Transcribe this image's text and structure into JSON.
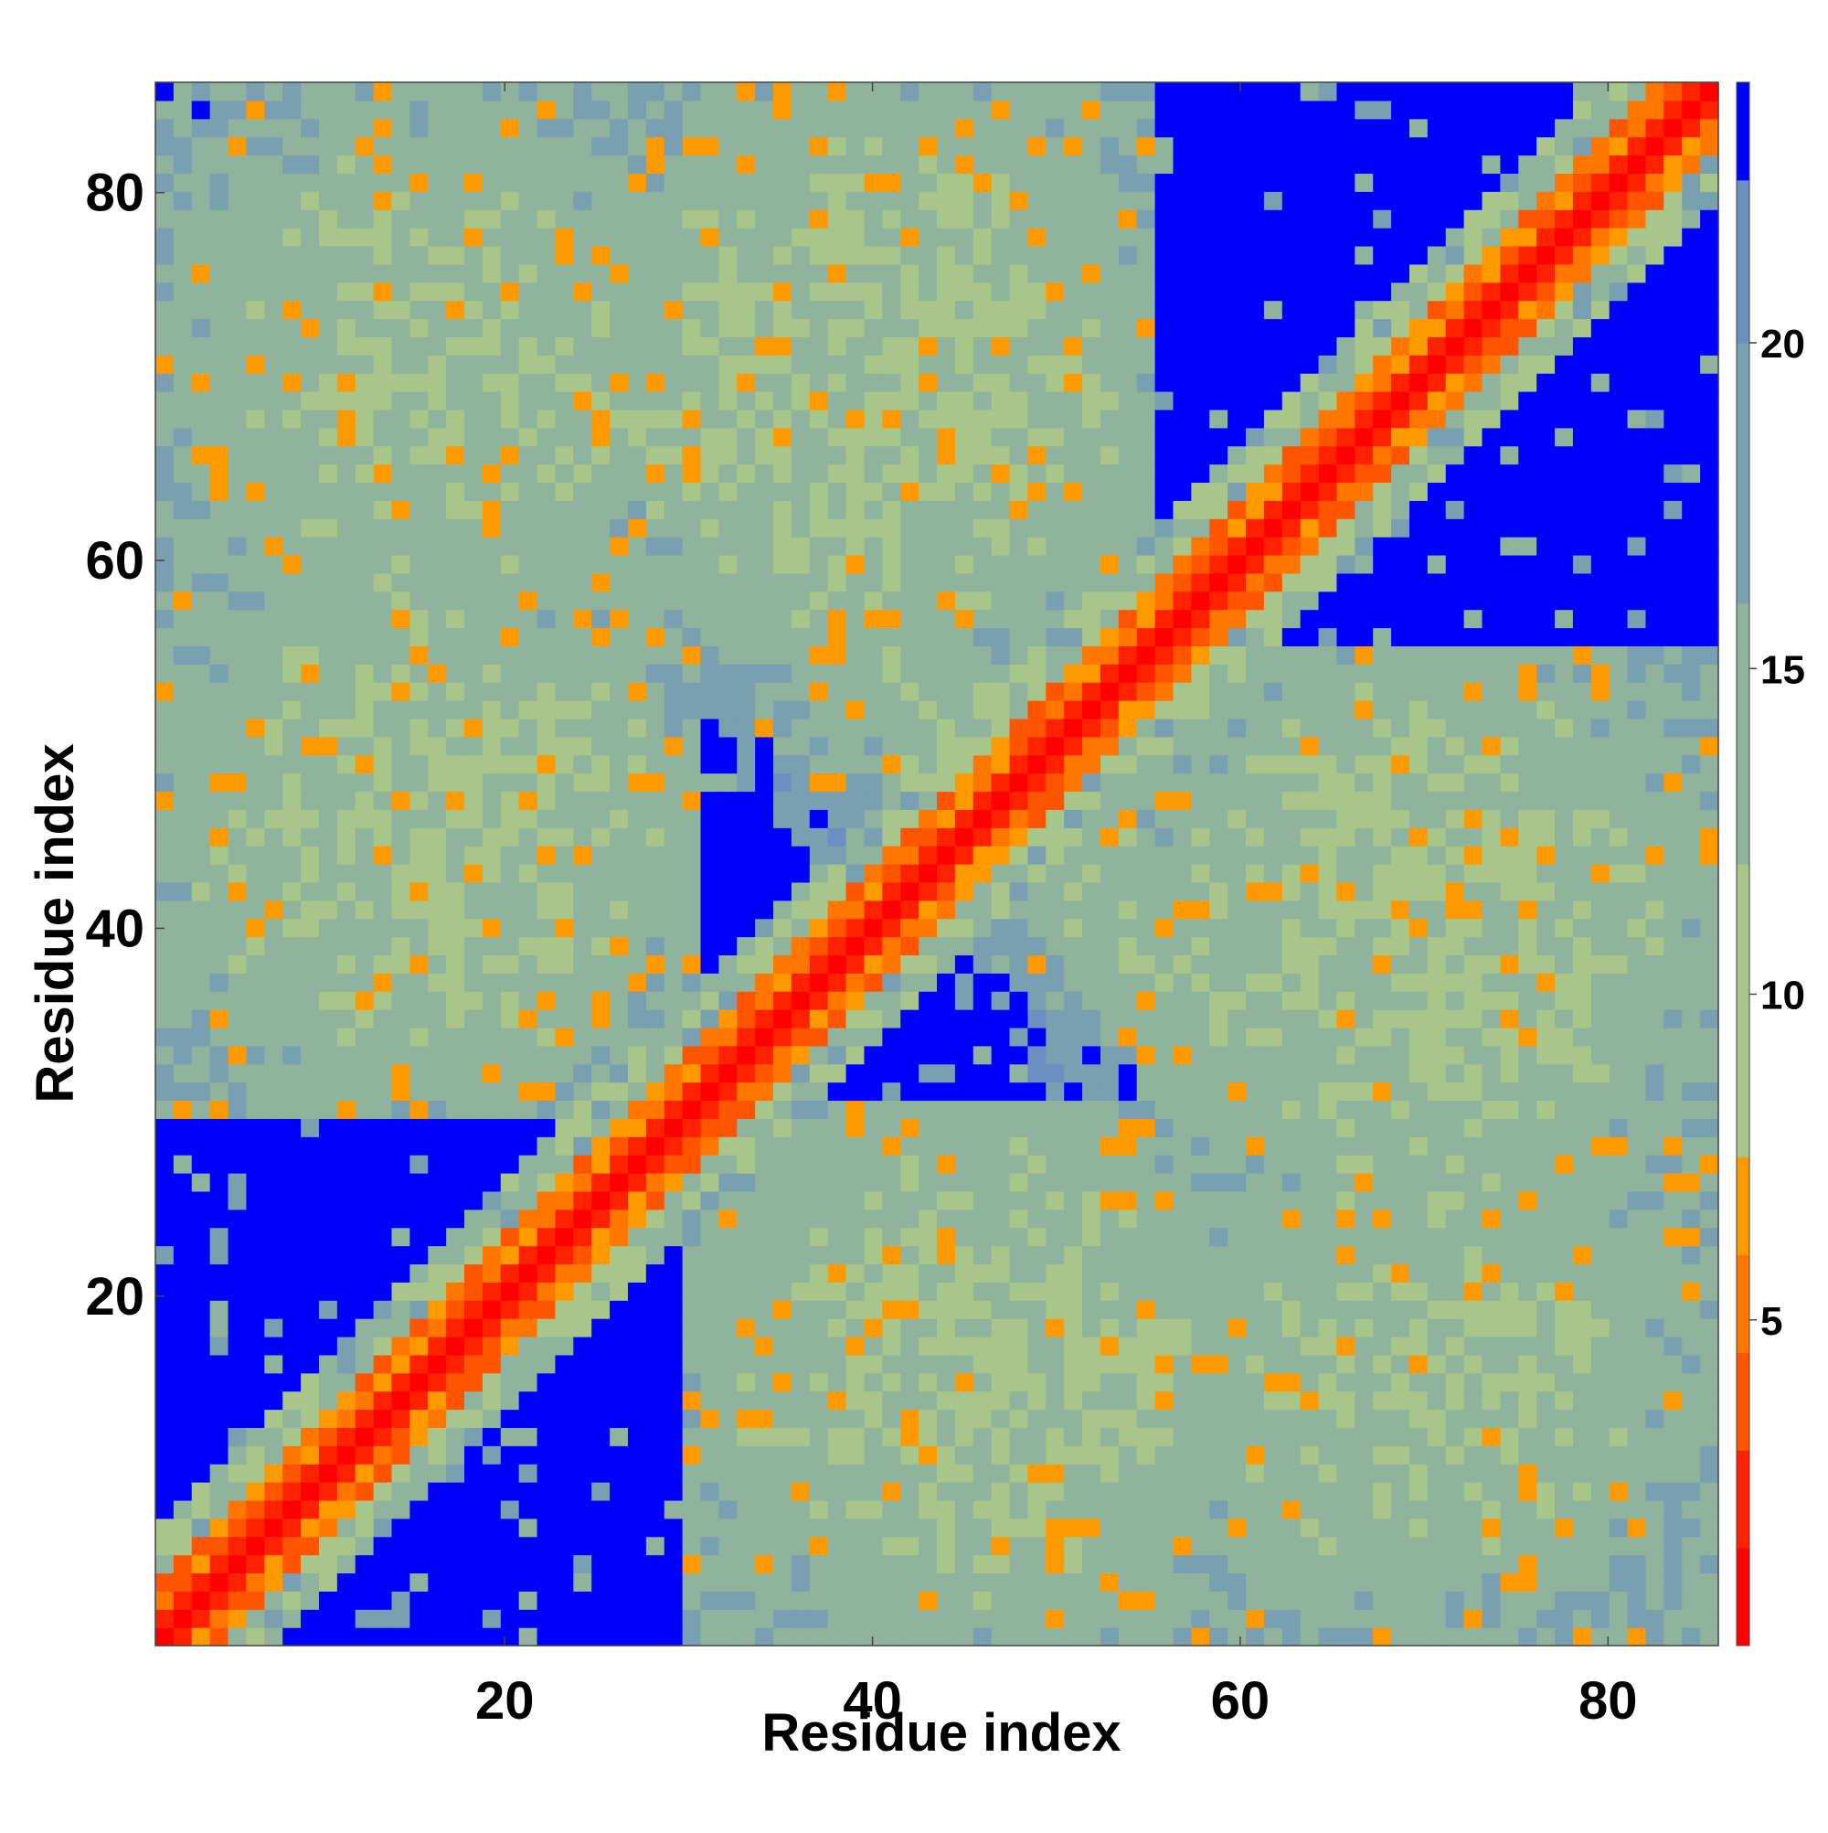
{
  "chart_data": {
    "type": "heatmap",
    "title": "",
    "xlabel": "Residue index",
    "ylabel": "Residue index",
    "n_residues": 86,
    "xlim": [
      1,
      86
    ],
    "ylim": [
      1,
      86
    ],
    "x_ticks": [
      20,
      40,
      60,
      80
    ],
    "y_ticks": [
      20,
      40,
      60,
      80
    ],
    "grid": false,
    "colorbar": {
      "location": "right",
      "range": [
        0,
        24
      ],
      "ticks": [
        5,
        10,
        15,
        20
      ],
      "levels": [
        {
          "from": 0,
          "to": 1.5,
          "color": "#ff0000"
        },
        {
          "from": 1.5,
          "to": 3,
          "color": "#ff2200"
        },
        {
          "from": 3,
          "to": 4.5,
          "color": "#ff5500"
        },
        {
          "from": 4.5,
          "to": 6,
          "color": "#ff7700"
        },
        {
          "from": 6,
          "to": 7.5,
          "color": "#ff9900"
        },
        {
          "from": 7.5,
          "to": 12,
          "color": "#a8c58a"
        },
        {
          "from": 12,
          "to": 16,
          "color": "#8fb39c"
        },
        {
          "from": 16,
          "to": 20,
          "color": "#7a9fb0"
        },
        {
          "from": 20,
          "to": 22.5,
          "color": "#6a8fc0"
        },
        {
          "from": 22.5,
          "to": 24,
          "color": "#0000ff"
        }
      ]
    },
    "regions": [
      {
        "description": "diagonal self-contact",
        "rows": [
          1,
          86
        ],
        "cols": [
          1,
          86
        ],
        "value_range": [
          0,
          1.5
        ]
      },
      {
        "description": "near-diagonal band",
        "offset_max": 3,
        "value_range": [
          3,
          7.5
        ]
      },
      {
        "description": "contact between residues 1-30 and 55-86",
        "rows": [
          1,
          30
        ],
        "cols": [
          55,
          86
        ],
        "value_range": [
          8,
          20
        ]
      },
      {
        "description": "contact between residues 25-55 and 55-86",
        "rows": [
          25,
          55
        ],
        "cols": [
          55,
          86
        ],
        "value_range": [
          8,
          20
        ]
      },
      {
        "description": "contact between residues 1-30 and 30-60",
        "rows": [
          1,
          30
        ],
        "cols": [
          30,
          60
        ],
        "value_range": [
          8,
          20
        ]
      }
    ]
  }
}
